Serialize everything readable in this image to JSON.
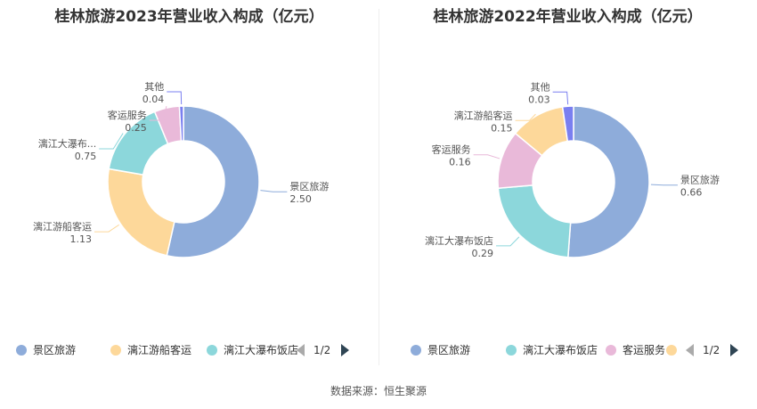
{
  "source": "数据来源：恒生聚源",
  "chart_data": [
    {
      "type": "pie",
      "title": "桂林旅游2023年营业收入构成（亿元）",
      "categories": [
        "景区旅游",
        "漓江游船客运",
        "漓江大瀑布饭店",
        "客运服务",
        "其他"
      ],
      "slice_labels": [
        "景区旅游",
        "漓江游船客运",
        "漓江大瀑布...",
        "客运服务",
        "其他"
      ],
      "values": [
        2.5,
        1.13,
        0.75,
        0.25,
        0.04
      ],
      "value_labels": [
        "2.50",
        "1.13",
        "0.75",
        "0.25",
        "0.04"
      ],
      "colors": [
        "#8eacda",
        "#fdd89a",
        "#8cd7db",
        "#e9b9d9",
        "#7a7ff0"
      ],
      "legend": {
        "position": "bottom",
        "items": [
          "景区旅游",
          "漓江游船客运",
          "漓江大瀑布饭店"
        ],
        "page": "1/2"
      }
    },
    {
      "type": "pie",
      "title": "桂林旅游2022年营业收入构成（亿元）",
      "categories": [
        "景区旅游",
        "漓江大瀑布饭店",
        "客运服务",
        "漓江游船客运",
        "其他"
      ],
      "slice_labels": [
        "景区旅游",
        "漓江大瀑布饭店",
        "客运服务",
        "漓江游船客运",
        "其他"
      ],
      "values": [
        0.66,
        0.29,
        0.16,
        0.15,
        0.03
      ],
      "value_labels": [
        "0.66",
        "0.29",
        "0.16",
        "0.15",
        "0.03"
      ],
      "colors": [
        "#8eacda",
        "#8cd7db",
        "#e9b9d9",
        "#fdd89a",
        "#7a7ff0"
      ],
      "legend": {
        "position": "bottom",
        "items": [
          "景区旅游",
          "漓江大瀑布饭店",
          "客运服务",
          ""
        ],
        "page": "1/2"
      }
    }
  ]
}
